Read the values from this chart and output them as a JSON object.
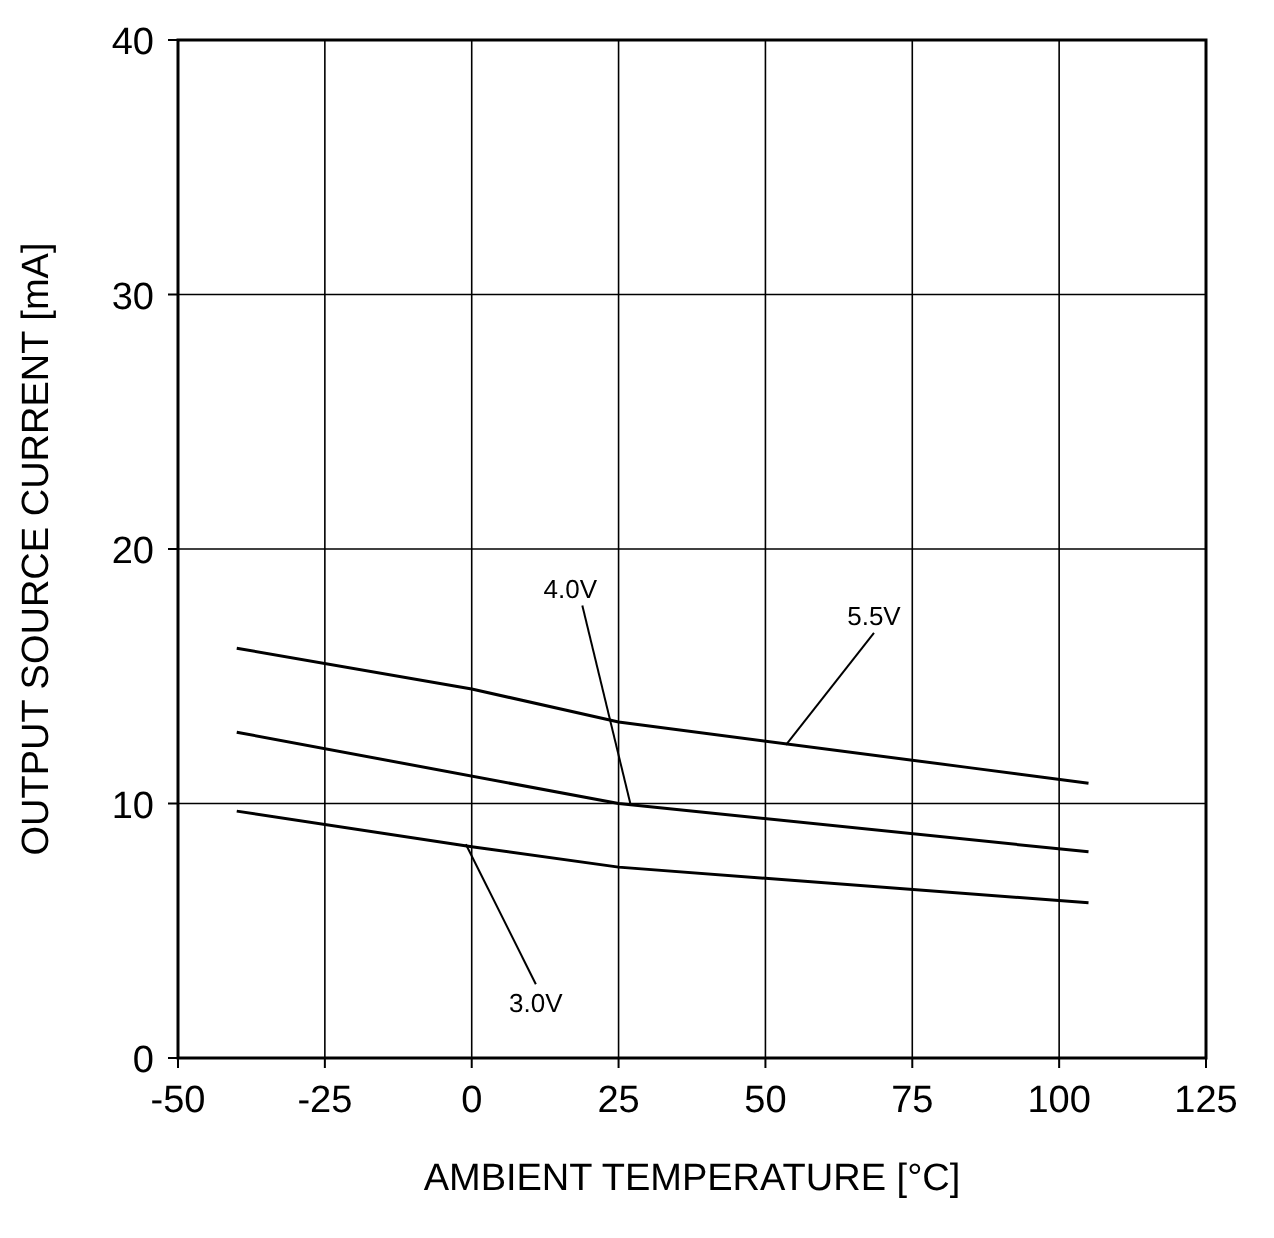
{
  "chart_data": {
    "type": "line",
    "xlabel": "AMBIENT TEMPERATURE [°C]",
    "ylabel": "OUTPUT SOURCE CURRENT [mA]",
    "xlim": [
      -50,
      125
    ],
    "ylim": [
      0,
      40
    ],
    "xticks": [
      -50,
      -25,
      0,
      25,
      50,
      75,
      100,
      125
    ],
    "yticks": [
      0,
      10,
      20,
      30,
      40
    ],
    "grid": true,
    "line_style": "solid",
    "series": [
      {
        "color": "#000000",
        "x": [
          -40,
          0,
          25,
          85,
          105
        ],
        "values": [
          16.1,
          14.5,
          13.2,
          11.4,
          10.8
        ]
      },
      {
        "color": "#000000",
        "x": [
          -40,
          25,
          105
        ],
        "values": [
          12.8,
          10.0,
          8.1
        ]
      },
      {
        "color": "#000000",
        "x": [
          -40,
          0,
          25,
          105
        ],
        "values": [
          9.7,
          8.3,
          7.5,
          6.1
        ]
      }
    ],
    "annotations": [
      {
        "text": "5.5V",
        "x": 53.5,
        "y": 12.3
      },
      {
        "text": "4.0V",
        "x": 27,
        "y": 10.0
      },
      {
        "text": "3.0V",
        "x": -1,
        "y": 8.4
      }
    ]
  }
}
